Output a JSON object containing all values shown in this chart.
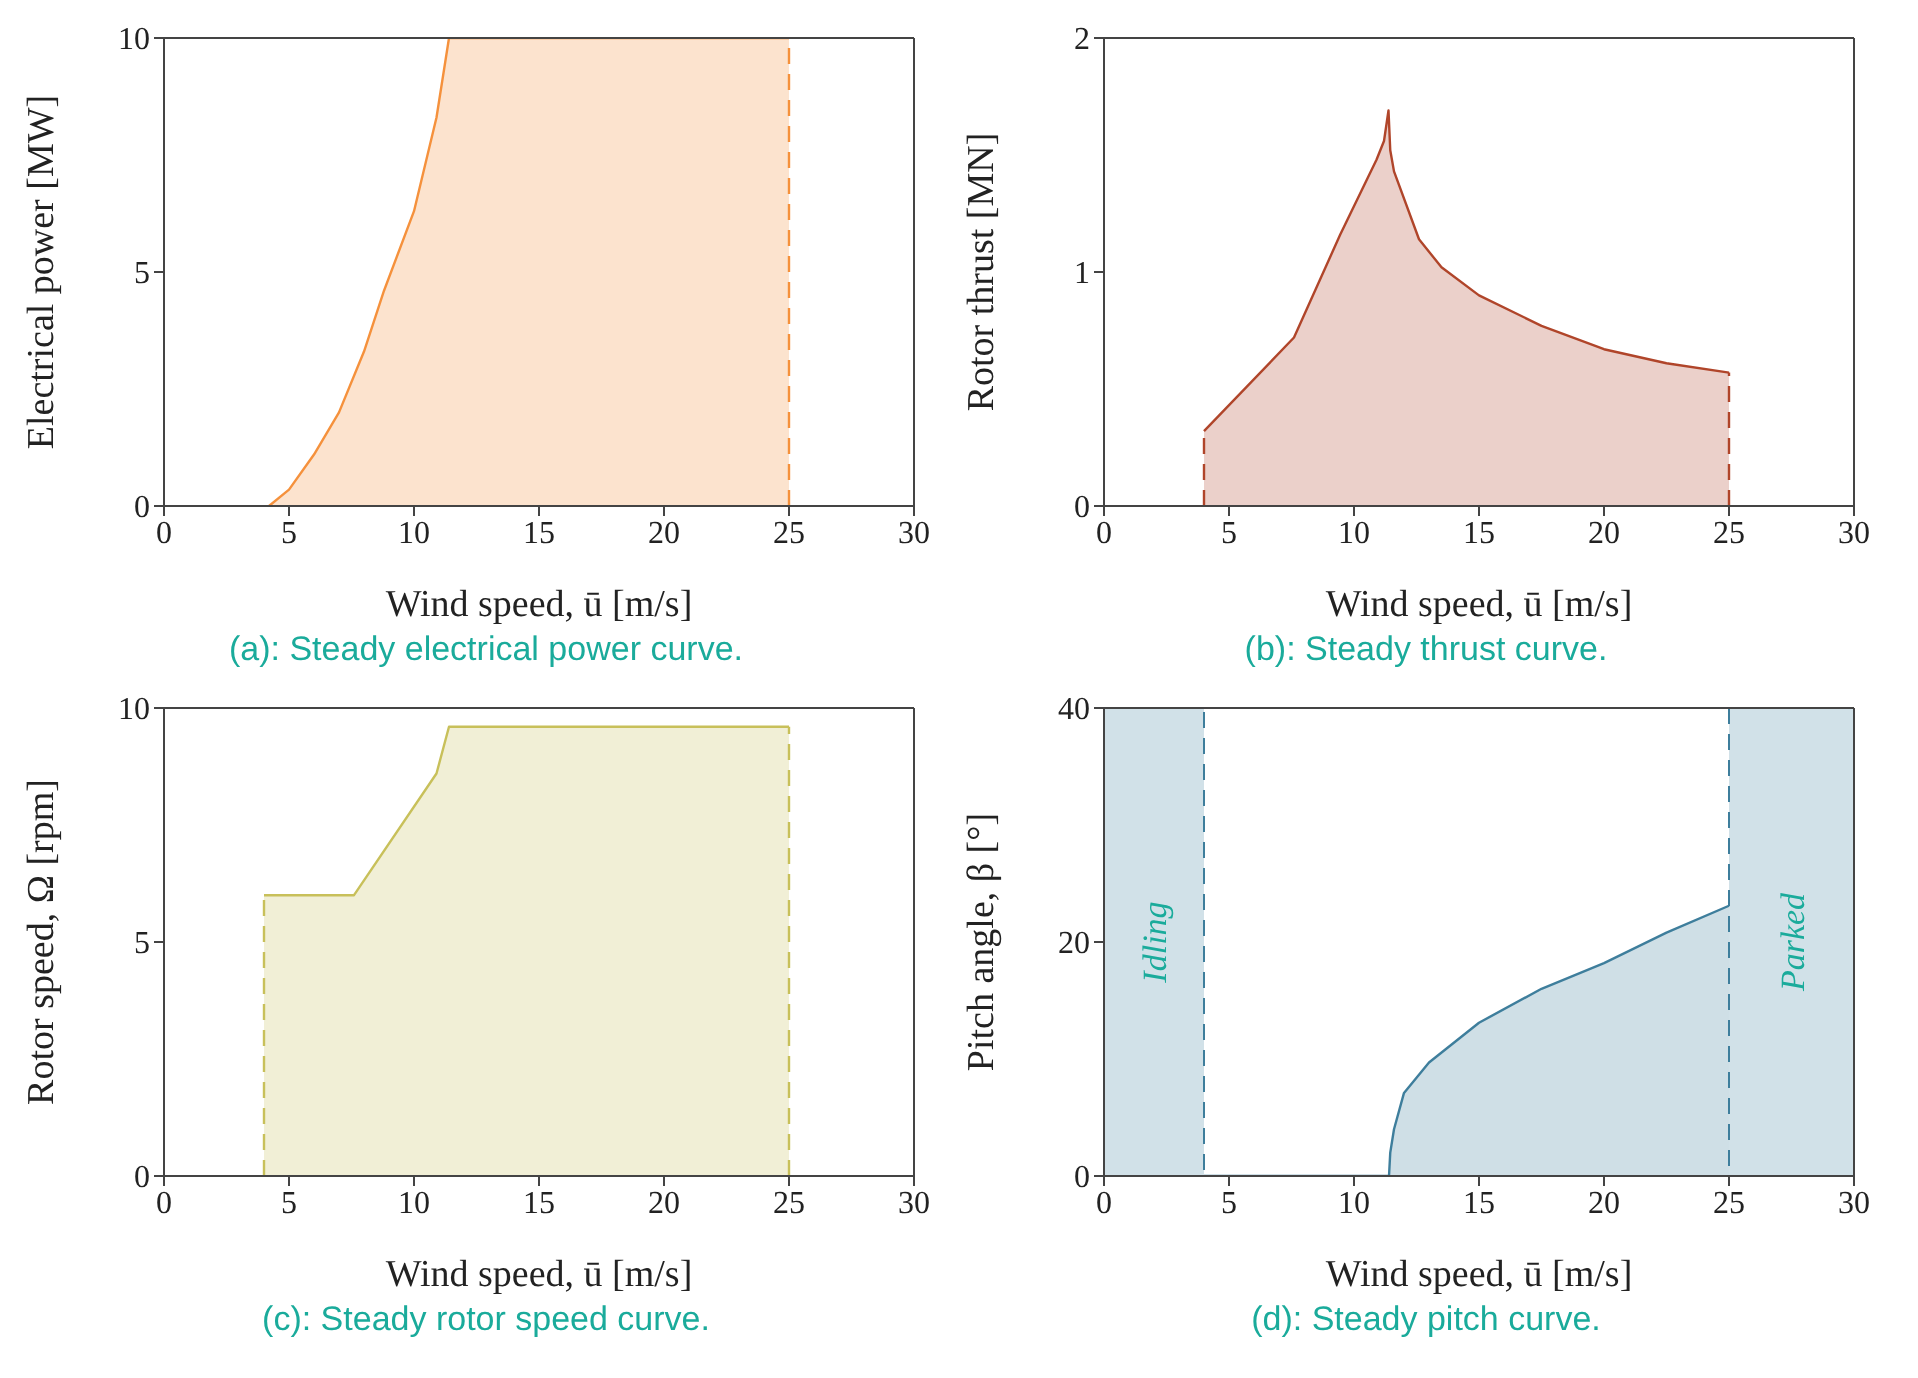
{
  "chart_data": [
    {
      "type": "area",
      "title": "(a): Steady electrical power curve.",
      "xlabel": "Wind speed, ū [m/s]",
      "ylabel": "Electrical power [MW]",
      "xlim": [
        0,
        30
      ],
      "xticks": [
        0,
        5,
        10,
        15,
        20,
        25,
        30
      ],
      "ylim": [
        0,
        10
      ],
      "yticks": [
        0,
        5,
        10
      ],
      "series": [
        {
          "color": "#f5913c",
          "x": [
            4.2,
            5,
            6,
            7,
            8,
            8.8,
            10,
            10.9,
            11.4,
            25
          ],
          "values": [
            0,
            0.35,
            1.1,
            2.0,
            3.3,
            4.6,
            6.3,
            8.3,
            10,
            10
          ]
        }
      ],
      "ref_lines": [
        {
          "axis": "x",
          "value": 25,
          "color": "#f5913c",
          "line_style": "dashed"
        }
      ]
    },
    {
      "type": "area",
      "title": "(b): Steady thrust curve.",
      "xlabel": "Wind speed, ū [m/s]",
      "ylabel": "Rotor thrust [MN]",
      "xlim": [
        0,
        30
      ],
      "xticks": [
        0,
        5,
        10,
        15,
        20,
        25,
        30
      ],
      "ylim": [
        0,
        2
      ],
      "yticks": [
        0,
        1,
        2
      ],
      "series": [
        {
          "color": "#b0452a",
          "x": [
            4,
            7.6,
            9.45,
            10.9,
            11.2,
            11.38,
            11.45,
            11.6,
            12.6,
            13.5,
            15,
            17.5,
            20,
            22.5,
            25
          ],
          "values": [
            0.32,
            0.72,
            1.16,
            1.48,
            1.56,
            1.69,
            1.52,
            1.43,
            1.14,
            1.02,
            0.9,
            0.77,
            0.67,
            0.61,
            0.57
          ]
        }
      ],
      "ref_lines": [
        {
          "axis": "x",
          "value": 4,
          "color": "#b0452a",
          "line_style": "dashed"
        },
        {
          "axis": "x",
          "value": 25,
          "color": "#b0452a",
          "line_style": "dashed"
        }
      ]
    },
    {
      "type": "area",
      "title": "(c): Steady rotor speed curve.",
      "xlabel": "Wind speed, ū [m/s]",
      "ylabel": "Rotor speed, Ω [rpm]",
      "xlim": [
        0,
        30
      ],
      "xticks": [
        0,
        5,
        10,
        15,
        20,
        25,
        30
      ],
      "ylim": [
        0,
        10
      ],
      "yticks": [
        0,
        5,
        10
      ],
      "series": [
        {
          "color": "#c8c05a",
          "x": [
            4,
            7.6,
            10.9,
            11.4,
            25
          ],
          "values": [
            6,
            6,
            8.6,
            9.6,
            9.6
          ]
        }
      ],
      "ref_lines": [
        {
          "axis": "x",
          "value": 4,
          "color": "#c8c05a",
          "line_style": "dashed"
        },
        {
          "axis": "x",
          "value": 25,
          "color": "#c8c05a",
          "line_style": "dashed"
        }
      ]
    },
    {
      "type": "area",
      "title": "(d): Steady pitch curve.",
      "xlabel": "Wind speed, ū [m/s]",
      "ylabel": "Pitch angle, β [°]",
      "xlim": [
        0,
        30
      ],
      "xticks": [
        0,
        5,
        10,
        15,
        20,
        25,
        30
      ],
      "ylim": [
        0,
        40
      ],
      "yticks": [
        0,
        20,
        40
      ],
      "series": [
        {
          "color": "#3e7e9c",
          "x": [
            4,
            11.4,
            11.45,
            11.6,
            12,
            13,
            15,
            17.5,
            20,
            22.5,
            25
          ],
          "values": [
            0,
            0,
            2,
            4,
            7.1,
            9.7,
            13.1,
            16,
            18.2,
            20.8,
            23.1
          ]
        }
      ],
      "bands": [
        {
          "axis": "x",
          "from": 0,
          "to": 4,
          "label": "Idling",
          "color": "#d1e1e8"
        },
        {
          "axis": "x",
          "from": 25,
          "to": 30,
          "label": "Parked",
          "color": "#d1e1e8"
        }
      ]
    }
  ]
}
